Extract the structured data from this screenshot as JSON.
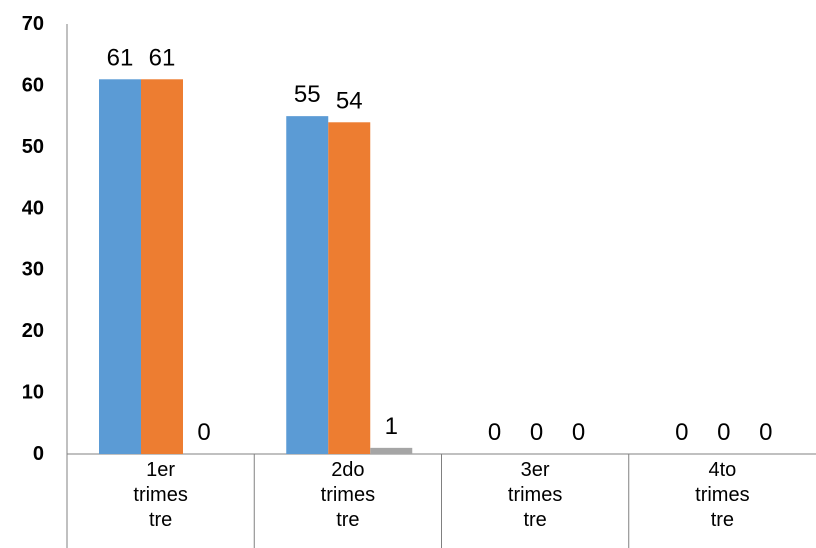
{
  "chart_data": {
    "type": "bar",
    "title": "",
    "xlabel": "",
    "ylabel": "",
    "ylim": [
      0,
      70
    ],
    "yticks": [
      0,
      10,
      20,
      30,
      40,
      50,
      60,
      70
    ],
    "grid": false,
    "legend": "none",
    "categories": [
      [
        "1er",
        "trimes",
        "tre"
      ],
      [
        "2do",
        "trimes",
        "tre"
      ],
      [
        "3er",
        "trimes",
        "tre"
      ],
      [
        "4to",
        "trimes",
        "tre"
      ]
    ],
    "series": [
      {
        "color": "#5b9bd5",
        "values": [
          61,
          55,
          0,
          0
        ]
      },
      {
        "color": "#ed7d31",
        "values": [
          61,
          54,
          0,
          0
        ]
      },
      {
        "color": "#a5a5a5",
        "values": [
          0,
          1,
          0,
          0
        ]
      }
    ]
  }
}
